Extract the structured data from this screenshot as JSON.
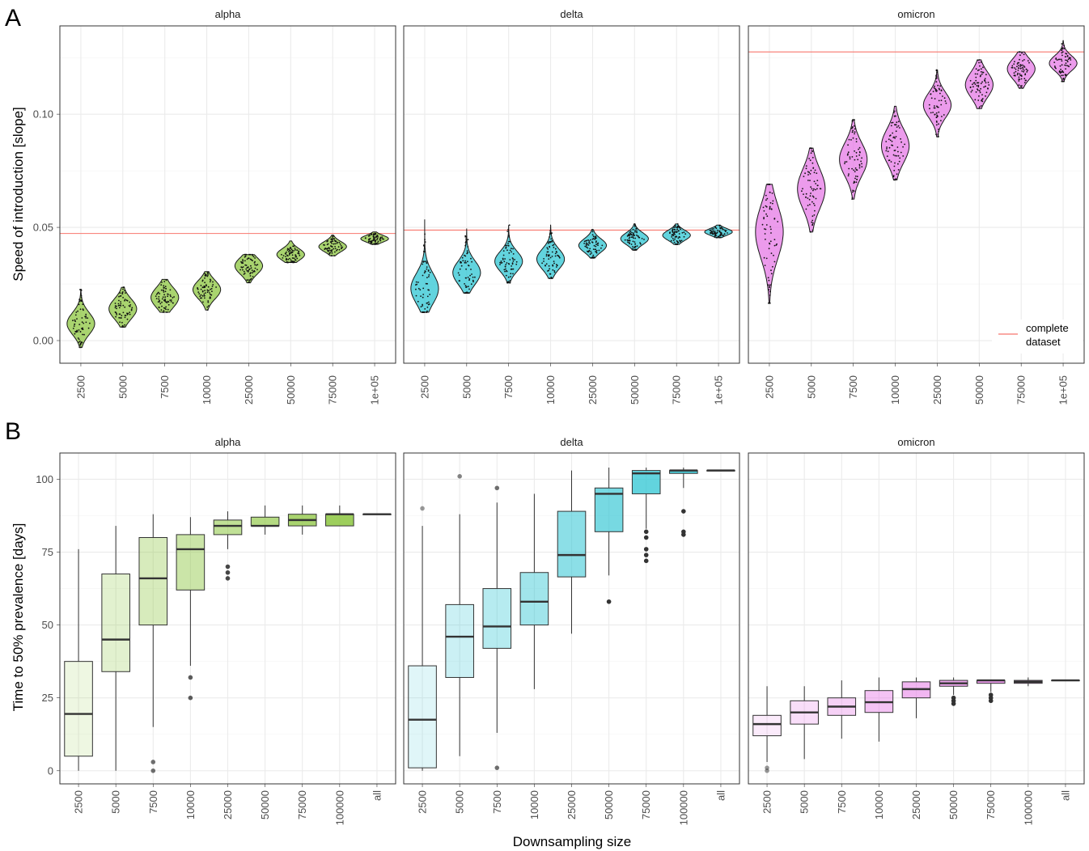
{
  "figure": {
    "panel_a_letter": "A",
    "panel_b_letter": "B",
    "colors": {
      "alpha": "#8cc63f",
      "delta": "#2ec5d3",
      "omicron": "#e67ae6",
      "reference_line": "#f8766d",
      "grid_major": "#ebebeb",
      "axis_text": "#4d4d4d",
      "outlier": "#333333"
    }
  },
  "chart_data": [
    {
      "panel": "A",
      "type": "violin",
      "ylabel": "Speed of introduction [slope]",
      "xlabel": "",
      "y_ticks": [
        0.0,
        0.05,
        0.1
      ],
      "y_tick_labels": [
        "0.00",
        "0.05",
        "0.10"
      ],
      "ylim": [
        -0.01,
        0.139
      ],
      "categories": [
        "2500",
        "5000",
        "7500",
        "10000",
        "25000",
        "50000",
        "75000",
        "1e+05"
      ],
      "grid": true,
      "legend": {
        "placement": "bottom-right",
        "entries": [
          "complete dataset"
        ],
        "label_lines": [
          "complete",
          "dataset"
        ]
      },
      "facets": [
        {
          "name": "alpha",
          "reference_line": 0.0473,
          "violins": [
            {
              "min": -0.003,
              "q1": 0.0045,
              "median": 0.0075,
              "q3": 0.011,
              "max": 0.0225
            },
            {
              "min": 0.006,
              "q1": 0.011,
              "median": 0.014,
              "q3": 0.017,
              "max": 0.0235
            },
            {
              "min": 0.0125,
              "q1": 0.016,
              "median": 0.019,
              "q3": 0.022,
              "max": 0.027
            },
            {
              "min": 0.0135,
              "q1": 0.0195,
              "median": 0.0225,
              "q3": 0.025,
              "max": 0.0305
            },
            {
              "min": 0.0255,
              "q1": 0.03,
              "median": 0.033,
              "q3": 0.035,
              "max": 0.038
            },
            {
              "min": 0.0345,
              "q1": 0.0365,
              "median": 0.038,
              "q3": 0.04,
              "max": 0.044
            },
            {
              "min": 0.0375,
              "q1": 0.04,
              "median": 0.0415,
              "q3": 0.043,
              "max": 0.0465
            },
            {
              "min": 0.0425,
              "q1": 0.044,
              "median": 0.045,
              "q3": 0.046,
              "max": 0.048
            }
          ]
        },
        {
          "name": "delta",
          "reference_line": 0.0488,
          "violins": [
            {
              "min": 0.0125,
              "q1": 0.019,
              "median": 0.023,
              "q3": 0.028,
              "max": 0.0535
            },
            {
              "min": 0.021,
              "q1": 0.027,
              "median": 0.03,
              "q3": 0.034,
              "max": 0.0495
            },
            {
              "min": 0.0255,
              "q1": 0.032,
              "median": 0.035,
              "q3": 0.038,
              "max": 0.051
            },
            {
              "min": 0.0275,
              "q1": 0.033,
              "median": 0.036,
              "q3": 0.039,
              "max": 0.051
            },
            {
              "min": 0.0365,
              "q1": 0.04,
              "median": 0.042,
              "q3": 0.044,
              "max": 0.049
            },
            {
              "min": 0.04,
              "q1": 0.0435,
              "median": 0.045,
              "q3": 0.047,
              "max": 0.0515
            },
            {
              "min": 0.0425,
              "q1": 0.045,
              "median": 0.0465,
              "q3": 0.048,
              "max": 0.0515
            },
            {
              "min": 0.0455,
              "q1": 0.047,
              "median": 0.048,
              "q3": 0.049,
              "max": 0.051
            }
          ]
        },
        {
          "name": "omicron",
          "reference_line": 0.1275,
          "violins": [
            {
              "min": 0.0165,
              "q1": 0.04,
              "median": 0.048,
              "q3": 0.056,
              "max": 0.069
            },
            {
              "min": 0.048,
              "q1": 0.061,
              "median": 0.067,
              "q3": 0.073,
              "max": 0.085
            },
            {
              "min": 0.0625,
              "q1": 0.075,
              "median": 0.08,
              "q3": 0.085,
              "max": 0.0975
            },
            {
              "min": 0.071,
              "q1": 0.081,
              "median": 0.086,
              "q3": 0.091,
              "max": 0.1035
            },
            {
              "min": 0.09,
              "q1": 0.1005,
              "median": 0.104,
              "q3": 0.108,
              "max": 0.1195
            },
            {
              "min": 0.1025,
              "q1": 0.1095,
              "median": 0.113,
              "q3": 0.117,
              "max": 0.124
            },
            {
              "min": 0.1115,
              "q1": 0.117,
              "median": 0.12,
              "q3": 0.123,
              "max": 0.1275
            },
            {
              "min": 0.1145,
              "q1": 0.1205,
              "median": 0.1225,
              "q3": 0.125,
              "max": 0.1325
            }
          ]
        }
      ]
    },
    {
      "panel": "B",
      "type": "box",
      "ylabel": "Time to 50% prevalence [days]",
      "xlabel": "Downsampling size",
      "y_ticks": [
        0,
        25,
        50,
        75,
        100
      ],
      "y_tick_labels": [
        "0",
        "25",
        "50",
        "75",
        "100"
      ],
      "ylim": [
        -4.5,
        109
      ],
      "categories": [
        "2500",
        "5000",
        "7500",
        "10000",
        "25000",
        "50000",
        "75000",
        "100000",
        "all"
      ],
      "grid": true,
      "facets": [
        {
          "name": "alpha",
          "boxes": [
            {
              "lower_whisker": 0,
              "q1": 5,
              "median": 19.5,
              "q3": 37.5,
              "upper_whisker": 76,
              "outliers": []
            },
            {
              "lower_whisker": 0,
              "q1": 34,
              "median": 45,
              "q3": 67.5,
              "upper_whisker": 84,
              "outliers": []
            },
            {
              "lower_whisker": 15,
              "q1": 50,
              "median": 66,
              "q3": 80,
              "upper_whisker": 88,
              "outliers": [
                3,
                0
              ]
            },
            {
              "lower_whisker": 36,
              "q1": 62,
              "median": 76,
              "q3": 81,
              "upper_whisker": 87,
              "outliers": [
                32,
                25
              ]
            },
            {
              "lower_whisker": 76,
              "q1": 81,
              "median": 84,
              "q3": 86,
              "upper_whisker": 89,
              "outliers": [
                70,
                68,
                66
              ]
            },
            {
              "lower_whisker": 81,
              "q1": 84,
              "median": 84,
              "q3": 87,
              "upper_whisker": 91,
              "outliers": []
            },
            {
              "lower_whisker": 81,
              "q1": 84,
              "median": 86,
              "q3": 88,
              "upper_whisker": 91,
              "outliers": []
            },
            {
              "lower_whisker": 84,
              "q1": 84,
              "median": 88,
              "q3": 88,
              "upper_whisker": 91,
              "outliers": []
            },
            {
              "lower_whisker": 88,
              "q1": 88,
              "median": 88,
              "q3": 88,
              "upper_whisker": 88,
              "outliers": []
            }
          ]
        },
        {
          "name": "delta",
          "boxes": [
            {
              "lower_whisker": 0,
              "q1": 1,
              "median": 17.5,
              "q3": 36,
              "upper_whisker": 84,
              "outliers": [
                90
              ]
            },
            {
              "lower_whisker": 5,
              "q1": 32,
              "median": 46,
              "q3": 57,
              "upper_whisker": 88,
              "outliers": [
                101
              ]
            },
            {
              "lower_whisker": 13,
              "q1": 42,
              "median": 49.5,
              "q3": 62.5,
              "upper_whisker": 92,
              "outliers": [
                97,
                1
              ]
            },
            {
              "lower_whisker": 28,
              "q1": 50,
              "median": 58,
              "q3": 68,
              "upper_whisker": 95,
              "outliers": []
            },
            {
              "lower_whisker": 47,
              "q1": 66.5,
              "median": 74,
              "q3": 89,
              "upper_whisker": 103,
              "outliers": []
            },
            {
              "lower_whisker": 67,
              "q1": 82,
              "median": 95,
              "q3": 97,
              "upper_whisker": 104,
              "outliers": [
                58
              ]
            },
            {
              "lower_whisker": 83,
              "q1": 95,
              "median": 102,
              "q3": 103,
              "upper_whisker": 104,
              "outliers": [
                82,
                80,
                76,
                74,
                72
              ]
            },
            {
              "lower_whisker": 97,
              "q1": 102,
              "median": 103,
              "q3": 103,
              "upper_whisker": 104,
              "outliers": [
                89,
                82,
                81
              ]
            },
            {
              "lower_whisker": 103,
              "q1": 103,
              "median": 103,
              "q3": 103,
              "upper_whisker": 103,
              "outliers": []
            }
          ]
        },
        {
          "name": "omicron",
          "boxes": [
            {
              "lower_whisker": 3,
              "q1": 12,
              "median": 16,
              "q3": 19,
              "upper_whisker": 29,
              "outliers": [
                1,
                0
              ]
            },
            {
              "lower_whisker": 4,
              "q1": 16,
              "median": 20,
              "q3": 24,
              "upper_whisker": 29,
              "outliers": []
            },
            {
              "lower_whisker": 11,
              "q1": 19,
              "median": 22,
              "q3": 25,
              "upper_whisker": 31,
              "outliers": []
            },
            {
              "lower_whisker": 10,
              "q1": 20,
              "median": 23.5,
              "q3": 27.5,
              "upper_whisker": 32,
              "outliers": []
            },
            {
              "lower_whisker": 18,
              "q1": 25,
              "median": 28,
              "q3": 30.5,
              "upper_whisker": 32,
              "outliers": []
            },
            {
              "lower_whisker": 26,
              "q1": 29,
              "median": 30,
              "q3": 31,
              "upper_whisker": 32,
              "outliers": [
                25,
                24,
                23
              ]
            },
            {
              "lower_whisker": 27,
              "q1": 30,
              "median": 31,
              "q3": 31,
              "upper_whisker": 31,
              "outliers": [
                26,
                25,
                24
              ]
            },
            {
              "lower_whisker": 29,
              "q1": 30,
              "median": 30.5,
              "q3": 31,
              "upper_whisker": 32,
              "outliers": []
            },
            {
              "lower_whisker": 31,
              "q1": 31,
              "median": 31,
              "q3": 31,
              "upper_whisker": 31,
              "outliers": []
            }
          ]
        }
      ]
    }
  ]
}
